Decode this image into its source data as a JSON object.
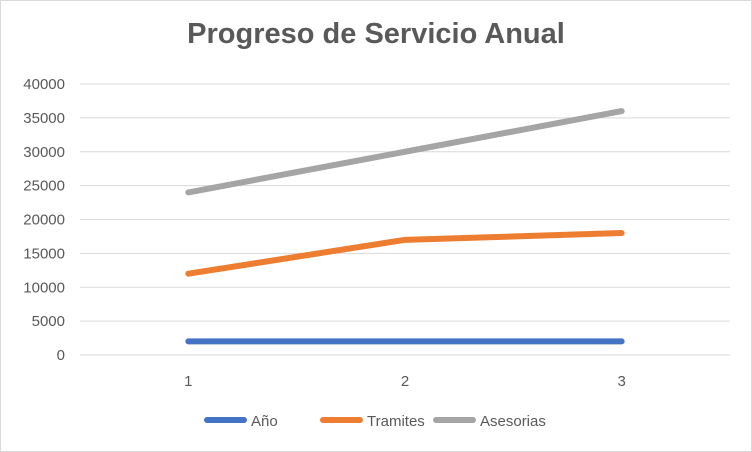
{
  "chart_data": {
    "type": "line",
    "title": "Progreso de Servicio Anual",
    "xlabel": "",
    "ylabel": "",
    "categories": [
      "1",
      "2",
      "3"
    ],
    "ylim": [
      0,
      40000
    ],
    "yticks": [
      "0",
      "5000",
      "10000",
      "15000",
      "20000",
      "25000",
      "30000",
      "35000",
      "40000"
    ],
    "grid": true,
    "legend": "bottom",
    "series": [
      {
        "name": "Año",
        "values": [
          2016,
          2017,
          2018
        ],
        "color": "#4472c4"
      },
      {
        "name": "Tramites",
        "values": [
          12000,
          17000,
          18000
        ],
        "color": "#ed7d31"
      },
      {
        "name": "Asesorias",
        "values": [
          24000,
          30000,
          36000
        ],
        "color": "#a5a5a5"
      }
    ]
  }
}
